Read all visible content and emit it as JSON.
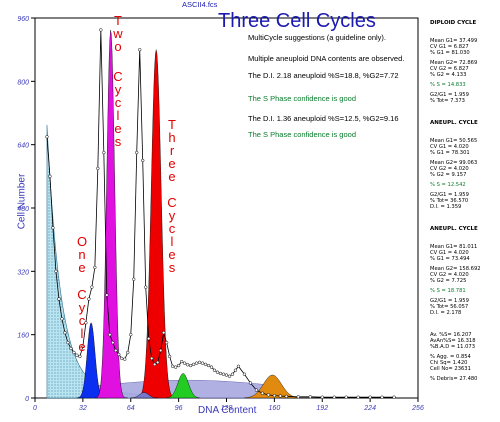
{
  "file_name": "ASCII4.fcs",
  "title": "Three Cell Cycles",
  "messages": [
    {
      "text": "MultiCycle suggestions (a guideline only).",
      "green": false
    },
    {
      "text": "Multiple aneuploid DNA contents are observed.",
      "green": false
    },
    {
      "text": "The D.I. 2.18 aneuploid  %S=18.8, %G2=7.72",
      "green": false
    },
    {
      "text": "The S Phase confidence is good",
      "green": true
    },
    {
      "text": "The D.I. 1.36 aneuploid  %S=12.5, %G2=9.16",
      "green": false
    },
    {
      "text": "The S Phase confidence is good",
      "green": true
    }
  ],
  "annotations": {
    "one_cycle_a": "One",
    "one_cycle_b": "Cycle",
    "two_cycles_a": "Two",
    "two_cycles_b": "Cycles",
    "three_cycles_a": "Three",
    "three_cycles_b": "Cycles"
  },
  "stats": {
    "diploid_header": "DIPLOID CYCLE",
    "diploid": [
      "Mean G1= 37.499",
      "CV G1 = 6.827",
      "% G1 = 81.030",
      "Mean G2= 72.869",
      "CV G2 = 6.827",
      "% G2 = 4.133",
      "% S = 14.833",
      "G2/G1 = 1.959",
      "% Tot= 7.373"
    ],
    "aneu1_header": "ANEUPL. CYCLE",
    "aneu1": [
      "Mean G1= 50.565",
      "CV G1 = 4.020",
      "% G1 = 78.301",
      "Mean G2= 99.063",
      "CV G2 = 4.020",
      "% G2 = 9.157",
      "% S = 12.542",
      "G2/G1 = 1.959",
      "% Tot= 36.570",
      "D.I. = 1.359"
    ],
    "aneu2_header": "ANEUPL. CYCLE",
    "aneu2": [
      "Mean G1= 81.011",
      "CV G1 = 4.020",
      "% G1 = 73.494",
      "Mean G2= 158.692",
      "CV G2 = 4.020",
      "% G2 = 7.725",
      "% S = 18.781",
      "G2/G1 = 1.959",
      "% Tot= 56.057",
      "D.I. = 2.178"
    ],
    "summary": [
      "Av. %S= 16.207",
      "AvAn%S= 16.318",
      "%B.A.D = 11.073",
      "% Agg. = 0.854",
      "Chi Sq= 1.420",
      "Cell No= 23631",
      "% Debris= 27.480"
    ]
  },
  "chart_data": {
    "type": "area",
    "title": "Three Cell Cycles",
    "xlabel": "DNA Content",
    "ylabel": "Cell Number",
    "xlim": [
      0,
      256
    ],
    "ylim": [
      0,
      960
    ],
    "x_ticks": [
      0,
      32,
      64,
      96,
      128,
      160,
      192,
      224,
      256
    ],
    "y_ticks": [
      0,
      160,
      320,
      480,
      640,
      800,
      960
    ],
    "x_tick_labels": [
      "0",
      "32",
      "64",
      "96",
      "128",
      "160",
      "192",
      "224",
      "256"
    ],
    "y_tick_labels": [
      "0",
      "160",
      "320",
      "480",
      "640",
      "800",
      "960"
    ],
    "histogram": {
      "x": [
        8,
        10,
        12,
        14,
        16,
        18,
        20,
        22,
        24,
        26,
        28,
        30,
        32,
        34,
        36,
        38,
        40,
        42,
        44,
        46,
        48,
        50,
        52,
        54,
        56,
        58,
        60,
        62,
        64,
        66,
        68,
        70,
        72,
        74,
        76,
        78,
        80,
        82,
        84,
        86,
        88,
        90,
        92,
        94,
        96,
        98,
        100,
        102,
        104,
        106,
        108,
        110,
        112,
        114,
        116,
        118,
        120,
        122,
        124,
        126,
        128,
        130,
        132,
        134,
        136,
        140,
        144,
        148,
        152,
        156,
        160,
        164,
        168,
        176,
        184,
        192,
        200,
        208,
        216,
        224,
        232,
        240
      ],
      "y": [
        660,
        560,
        430,
        320,
        250,
        200,
        165,
        140,
        125,
        115,
        108,
        105,
        130,
        190,
        250,
        280,
        330,
        580,
        930,
        620,
        260,
        160,
        140,
        120,
        110,
        100,
        98,
        115,
        160,
        300,
        620,
        880,
        600,
        280,
        150,
        100,
        85,
        90,
        120,
        165,
        140,
        105,
        80,
        78,
        82,
        92,
        88,
        84,
        82,
        85,
        88,
        90,
        88,
        85,
        82,
        78,
        70,
        65,
        62,
        60,
        58,
        55,
        60,
        70,
        80,
        60,
        38,
        20,
        12,
        8,
        6,
        5,
        4,
        3,
        3,
        2,
        2,
        2,
        2,
        2,
        2,
        2
      ]
    },
    "components": [
      {
        "name": "Debris",
        "color": "#9fd8e8",
        "center": 10,
        "peak": 650
      },
      {
        "name": "Diploid G1",
        "color": "#0b2ff0",
        "center": 37.5,
        "peak": 190
      },
      {
        "name": "Aneuploid 1.36 G1",
        "color": "#e010e0",
        "center": 50.6,
        "peak": 930
      },
      {
        "name": "Aneuploid 2.18 G1",
        "color": "#ee0000",
        "center": 81,
        "peak": 880
      },
      {
        "name": "Aneuploid 1.36 G2",
        "color": "#22cc22",
        "center": 99,
        "peak": 62
      },
      {
        "name": "Aneuploid 2.18 G2",
        "color": "#e08a10",
        "center": 158.7,
        "peak": 58
      },
      {
        "name": "Diploid G2",
        "color": "#7777cc",
        "center": 72.9,
        "peak": 14
      }
    ]
  }
}
